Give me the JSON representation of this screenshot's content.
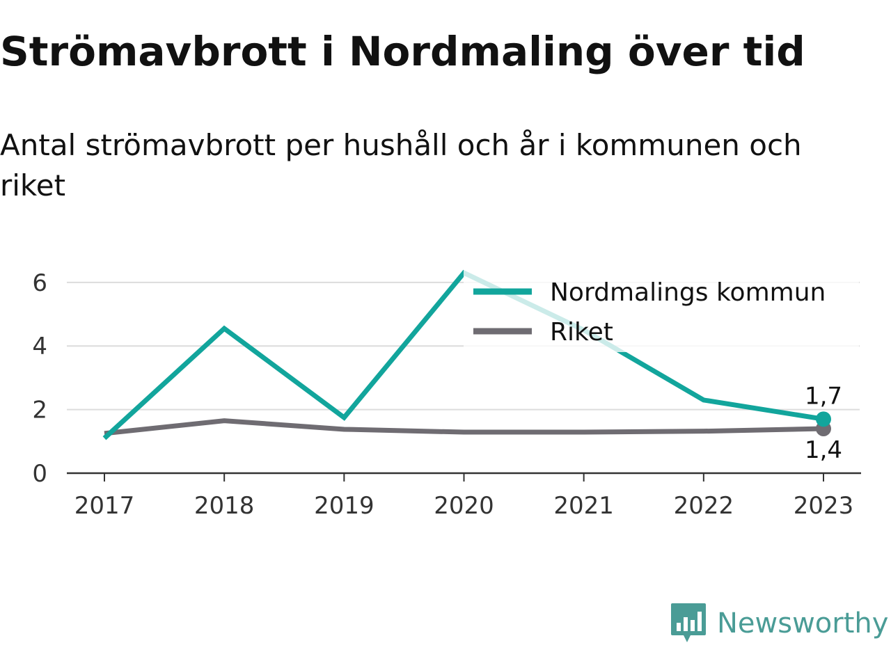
{
  "header": {
    "title": "Strömavbrott i Nordmaling över tid",
    "subtitle": "Antal strömavbrott per hushåll och år i kommunen och riket"
  },
  "brand": {
    "name": "Newsworthy",
    "icon": "bar-chart-speech-bubble-icon",
    "color": "#4a9c96"
  },
  "chart_data": {
    "type": "line",
    "title": "Strömavbrott i Nordmaling över tid",
    "subtitle": "Antal strömavbrott per hushåll och år i kommunen och riket",
    "xlabel": "",
    "ylabel": "",
    "x": [
      "2017",
      "2018",
      "2019",
      "2020",
      "2021",
      "2022",
      "2023"
    ],
    "ylim": [
      0,
      6.5
    ],
    "yticks": [
      0,
      2,
      4,
      6
    ],
    "grid": true,
    "legend_position": "top-right",
    "series": [
      {
        "name": "Nordmalings kommun",
        "color": "#12a59c",
        "values": [
          1.1,
          4.55,
          1.75,
          6.3,
          4.5,
          2.3,
          1.7
        ],
        "end_label": "1,7"
      },
      {
        "name": "Riket",
        "color": "#6f6c72",
        "values": [
          1.25,
          1.65,
          1.38,
          1.29,
          1.29,
          1.32,
          1.4
        ],
        "end_label": "1,4"
      }
    ]
  }
}
